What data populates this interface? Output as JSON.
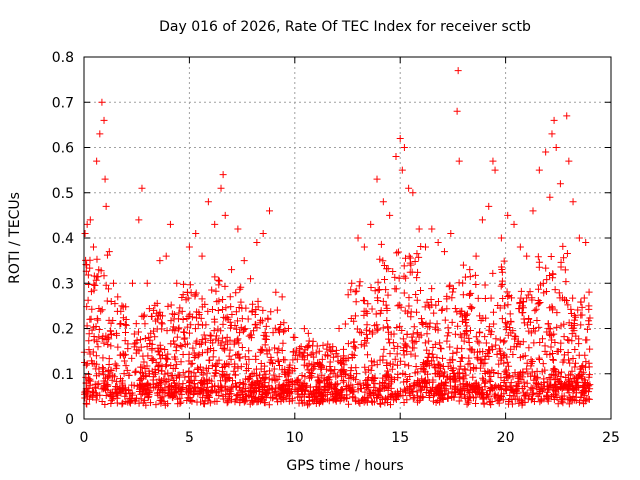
{
  "chart_data": {
    "type": "scatter",
    "title": "Day 016 of 2026, Rate Of TEC Index for receiver sctb",
    "xlabel": "GPS time / hours",
    "ylabel": "ROTI / TECUs",
    "xlim": [
      0,
      25
    ],
    "ylim": [
      0,
      0.8
    ],
    "x_ticks": [
      0,
      5,
      10,
      15,
      20,
      25
    ],
    "x_tick_labels": [
      "0",
      "5",
      "10",
      "15",
      "20",
      "25"
    ],
    "y_ticks": [
      0,
      0.1,
      0.2,
      0.3,
      0.4,
      0.5,
      0.6,
      0.7,
      0.8
    ],
    "y_tick_labels": [
      "0",
      "0.1",
      "0.2",
      "0.3",
      "0.4",
      "0.5",
      "0.6",
      "0.7",
      "0.8"
    ],
    "grid": true,
    "marker": "+",
    "marker_color": "#ff0000",
    "series": [
      {
        "name": "ROTI",
        "x": [
          0.05,
          0.15,
          0.3,
          0.45,
          0.6,
          0.75,
          0.85,
          0.95,
          1.0,
          1.05,
          1.2,
          1.4,
          1.6,
          1.8,
          2.0,
          2.3,
          2.6,
          2.75,
          3.0,
          3.3,
          3.6,
          3.9,
          4.1,
          4.4,
          4.7,
          5.0,
          5.3,
          5.6,
          5.9,
          6.2,
          6.5,
          6.6,
          6.7,
          7.0,
          7.3,
          7.6,
          7.9,
          8.2,
          8.5,
          8.8,
          9.1,
          9.4,
          9.7,
          10.0,
          10.3,
          10.6,
          10.9,
          11.2,
          11.5,
          11.8,
          12.1,
          12.4,
          12.7,
          13.0,
          13.3,
          13.6,
          13.9,
          14.2,
          14.5,
          14.8,
          15.0,
          15.1,
          15.2,
          15.4,
          15.6,
          15.9,
          16.2,
          16.5,
          16.8,
          17.1,
          17.4,
          17.7,
          17.75,
          17.8,
          18.0,
          18.3,
          18.6,
          18.9,
          19.2,
          19.4,
          19.5,
          19.8,
          20.1,
          20.4,
          20.7,
          21.0,
          21.3,
          21.6,
          21.9,
          22.1,
          22.2,
          22.3,
          22.4,
          22.6,
          22.9,
          23.0,
          23.2,
          23.5,
          23.8,
          23.95
        ],
        "y": [
          0.41,
          0.43,
          0.44,
          0.38,
          0.57,
          0.63,
          0.7,
          0.66,
          0.53,
          0.47,
          0.37,
          0.3,
          0.27,
          0.25,
          0.22,
          0.3,
          0.44,
          0.51,
          0.3,
          0.24,
          0.35,
          0.36,
          0.43,
          0.3,
          0.22,
          0.38,
          0.41,
          0.36,
          0.48,
          0.43,
          0.51,
          0.54,
          0.45,
          0.33,
          0.42,
          0.35,
          0.31,
          0.39,
          0.41,
          0.46,
          0.28,
          0.27,
          0.2,
          0.18,
          0.16,
          0.14,
          0.12,
          0.12,
          0.11,
          0.16,
          0.2,
          0.21,
          0.3,
          0.4,
          0.38,
          0.43,
          0.53,
          0.48,
          0.45,
          0.58,
          0.62,
          0.55,
          0.6,
          0.51,
          0.5,
          0.42,
          0.38,
          0.42,
          0.39,
          0.37,
          0.41,
          0.68,
          0.77,
          0.57,
          0.34,
          0.33,
          0.36,
          0.44,
          0.47,
          0.57,
          0.55,
          0.4,
          0.45,
          0.43,
          0.38,
          0.36,
          0.46,
          0.55,
          0.59,
          0.49,
          0.63,
          0.66,
          0.6,
          0.52,
          0.67,
          0.57,
          0.48,
          0.4,
          0.39,
          0.25
        ]
      }
    ]
  }
}
